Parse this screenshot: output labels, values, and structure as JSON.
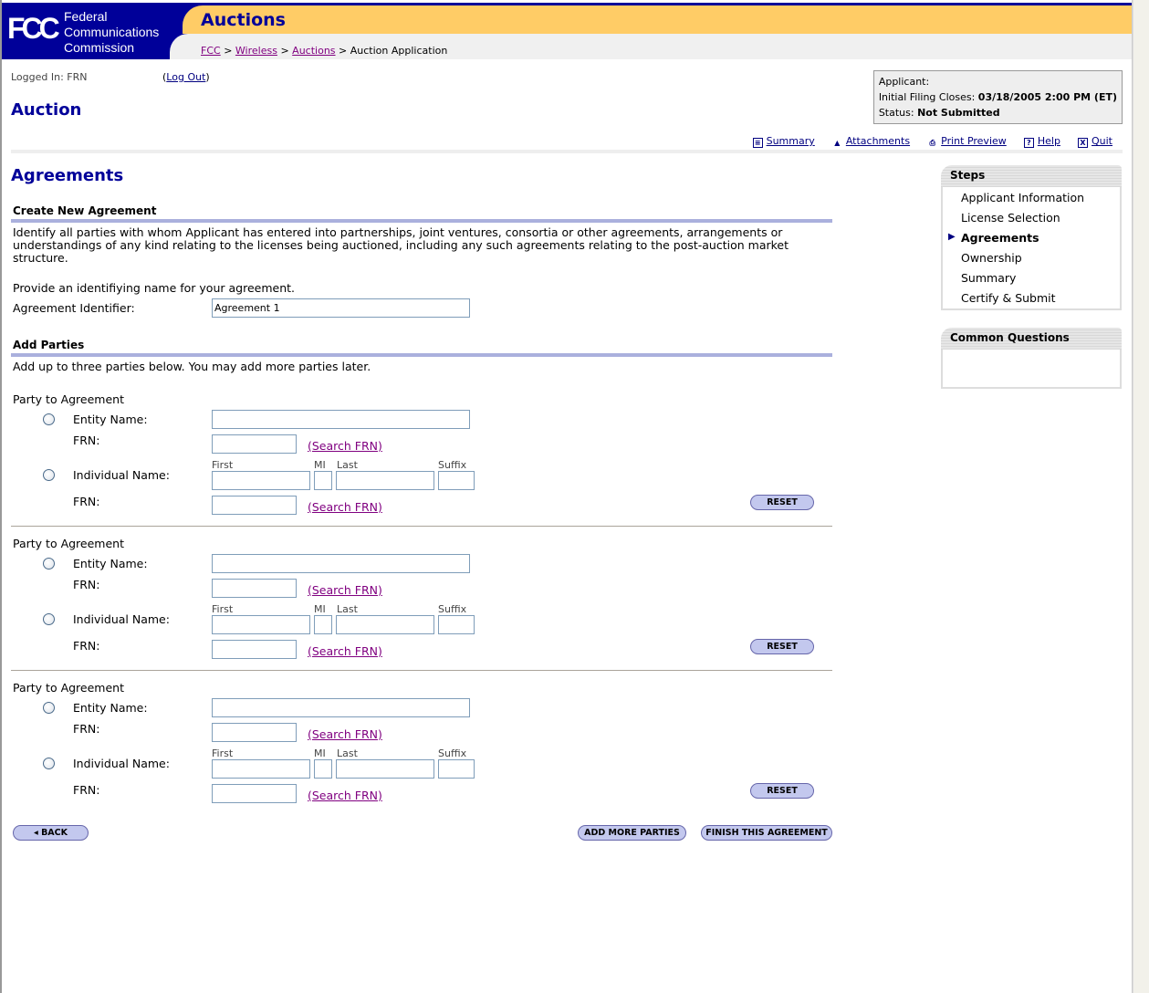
{
  "header": {
    "logo": "FCC",
    "agency": [
      "Federal",
      "Communications",
      "Commission"
    ],
    "title": "Auctions",
    "breadcrumb": [
      {
        "label": "FCC",
        "link": true
      },
      {
        "label": "Wireless",
        "link": true
      },
      {
        "label": "Auctions",
        "link": true
      },
      {
        "label": "Auction Application",
        "link": false
      }
    ]
  },
  "login": {
    "label": "Logged In: FRN",
    "logout": "Log Out"
  },
  "page_title": "Auction",
  "applicant_box": {
    "applicant": "Applicant:",
    "closes_label": "Initial Filing Closes:",
    "closes_value": "03/18/2005 2:00 PM (ET)",
    "status_label": "Status:",
    "status_value": "Not Submitted"
  },
  "links": [
    {
      "label": "Summary",
      "icon": "summary-icon"
    },
    {
      "label": "Attachments",
      "icon": "upload-icon"
    },
    {
      "label": "Print Preview",
      "icon": "printer-icon"
    },
    {
      "label": "Help",
      "icon": "help-icon"
    },
    {
      "label": "Quit",
      "icon": "close-icon"
    }
  ],
  "main": {
    "heading": "Agreements",
    "create_section": "Create New Agreement",
    "intro": "Identify all parties with whom Applicant has entered into partnerships, joint ventures, consortia or other agreements, arrangements or understandings of any kind relating to the licenses being auctioned, including any such agreements relating to the post-auction market structure.",
    "provide": "Provide an identifiying name for your agreement.",
    "identifier_label": "Agreement Identifier:",
    "identifier_value": "Agreement 1",
    "add_section": "Add Parties",
    "add_text": "Add up to three parties below. You may add more parties later.",
    "party": {
      "title": "Party to Agreement",
      "entity": "Entity Name:",
      "frn": "FRN:",
      "individual": "Individual Name:",
      "search": "(Search FRN)",
      "first": "First",
      "mi": "MI",
      "last": "Last",
      "suffix": "Suffix",
      "reset": "RESET"
    },
    "party_count": 3
  },
  "buttons": {
    "back": "BACK",
    "add_more": "ADD MORE PARTIES",
    "finish": "FINISH THIS AGREEMENT"
  },
  "steps": {
    "title": "Steps",
    "items": [
      {
        "label": "Applicant Information",
        "current": false
      },
      {
        "label": "License Selection",
        "current": false
      },
      {
        "label": "Agreements",
        "current": true
      },
      {
        "label": "Ownership",
        "current": false
      },
      {
        "label": "Summary",
        "current": false
      },
      {
        "label": "Certify & Submit",
        "current": false
      }
    ]
  },
  "questions": {
    "title": "Common Questions"
  },
  "colors": {
    "brand_blue": "#000099",
    "gold": "#ffcc66",
    "button": "#c3c8ee",
    "section_rule": "#aab0dd"
  }
}
